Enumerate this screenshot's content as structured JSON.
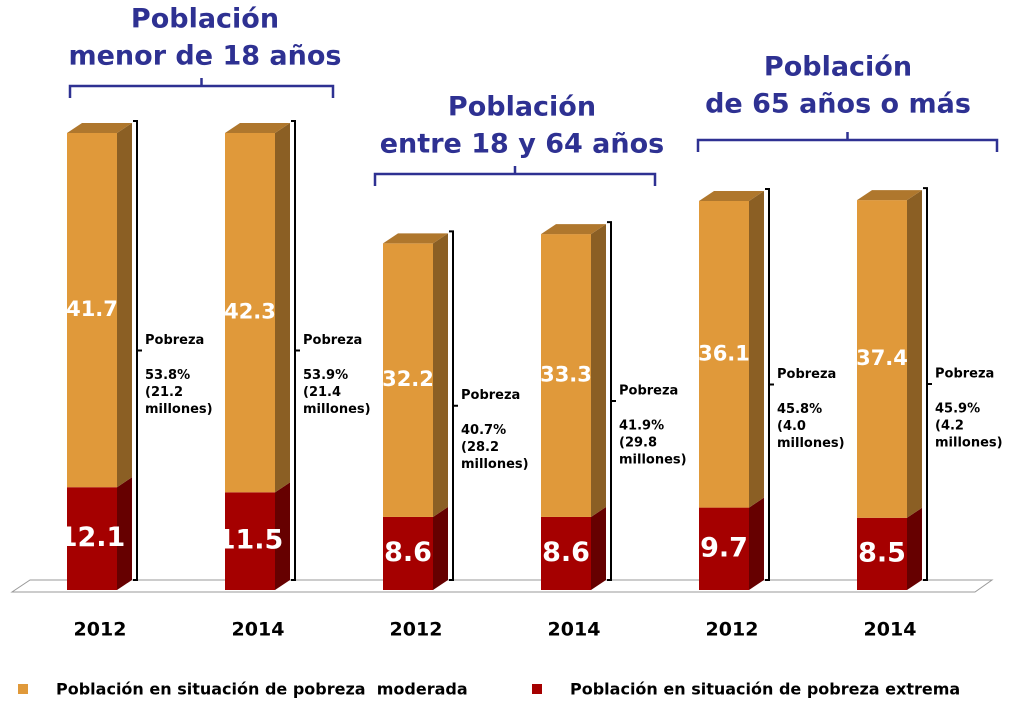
{
  "chart_data": {
    "type": "stacked-bar-3d",
    "groups": [
      {
        "title": [
          "Población",
          "menor de 18 años"
        ]
      },
      {
        "title": [
          "Población",
          "entre 18 y 64 años"
        ]
      },
      {
        "title": [
          "Población",
          "de 65 años o más"
        ]
      }
    ],
    "categories": [
      "2012",
      "2014",
      "2012",
      "2014",
      "2012",
      "2014"
    ],
    "series": [
      {
        "name": "Población en situación de pobreza extrema",
        "color": "#a50000",
        "values": [
          12.1,
          11.5,
          8.6,
          8.6,
          9.7,
          8.5
        ]
      },
      {
        "name": "Población en situación de pobreza  moderada",
        "color": "#e0993a",
        "values": [
          41.7,
          42.3,
          32.2,
          33.3,
          36.1,
          37.4
        ]
      }
    ],
    "annotations": [
      [
        "Pobreza",
        "53.8%",
        "(21.2",
        "millones)"
      ],
      [
        "Pobreza",
        "53.9%",
        "(21.4",
        "millones)"
      ],
      [
        "Pobreza",
        "40.7%",
        "(28.2",
        "millones)"
      ],
      [
        "Pobreza",
        "41.9%",
        "(29.8",
        "millones)"
      ],
      [
        "Pobreza",
        "45.8%",
        "(4.0",
        "millones)"
      ],
      [
        "Pobreza",
        "45.9%",
        "(4.2",
        "millones)"
      ]
    ]
  }
}
